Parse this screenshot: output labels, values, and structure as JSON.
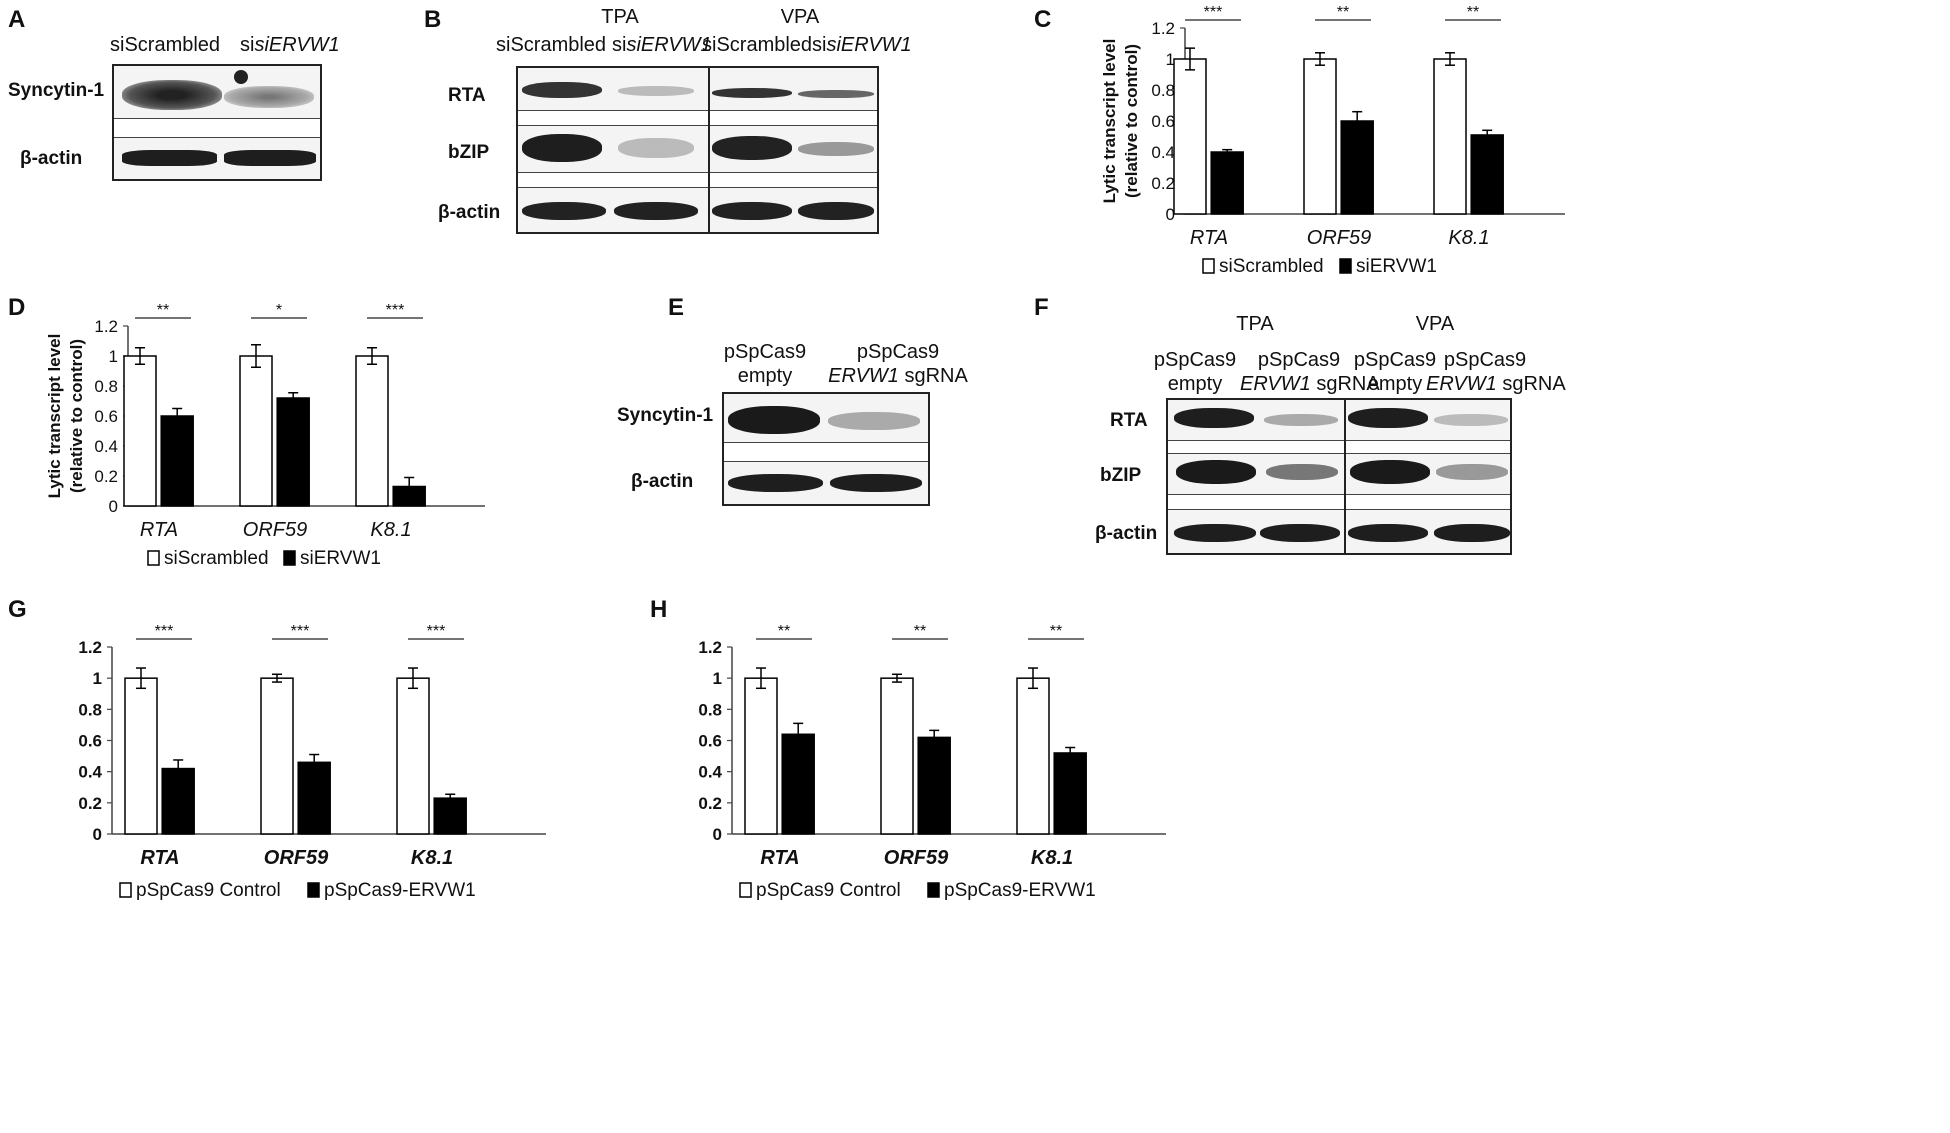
{
  "panels": {
    "A": {
      "letter": "A",
      "lanes": [
        "siScrambled",
        "siERVW1"
      ],
      "rows": [
        "Syncytin-1",
        "β-actin"
      ]
    },
    "B": {
      "letter": "B",
      "groups": [
        "TPA",
        "VPA"
      ],
      "lanes": [
        "siScrambled",
        "siERVW1",
        "siScrambled",
        "siERVW1"
      ],
      "rows": [
        "RTA",
        "bZIP",
        "β-actin"
      ]
    },
    "C": {
      "letter": "C"
    },
    "D": {
      "letter": "D"
    },
    "E": {
      "letter": "E",
      "lanes": [
        {
          "line1": "pSpCas9",
          "line2": "empty"
        },
        {
          "line1": "pSpCas9",
          "line2a": "ERVW1",
          "line2b": " sgRNA"
        }
      ],
      "rows": [
        "Syncytin-1",
        "β-actin"
      ]
    },
    "F": {
      "letter": "F",
      "groups": [
        "TPA",
        "VPA"
      ],
      "lanes": [
        {
          "line1": "pSpCas9",
          "line2": "empty"
        },
        {
          "line1": "pSpCas9",
          "line2a": "ERVW1",
          "line2b": " sgRNA"
        },
        {
          "line1": "pSpCas9",
          "line2": "empty"
        },
        {
          "line1": "pSpCas9",
          "line2a": "ERVW1",
          "line2b": " sgRNA"
        }
      ],
      "rows": [
        "RTA",
        "bZIP",
        "β-actin"
      ]
    },
    "G": {
      "letter": "G"
    },
    "H": {
      "letter": "H"
    }
  },
  "chart_data": [
    {
      "panel": "C",
      "type": "bar",
      "categories": [
        "RTA",
        "ORF59",
        "K8.1"
      ],
      "series": [
        {
          "name": "siScrambled",
          "values": [
            1.0,
            1.0,
            1.0
          ],
          "errors": [
            0.07,
            0.04,
            0.04
          ],
          "color": "#ffffff"
        },
        {
          "name": "siERVW1",
          "values": [
            0.4,
            0.6,
            0.51
          ],
          "errors": [
            0.015,
            0.06,
            0.03
          ],
          "color": "#000000"
        }
      ],
      "significance": [
        "***",
        "**",
        "**"
      ],
      "ylabel": [
        "Lytic transcript level",
        "(relative to control)"
      ],
      "ylim": [
        0,
        1.2
      ],
      "yticks": [
        "0",
        "0.2",
        "0.4",
        "0.6",
        "0.8",
        "1",
        "1.2"
      ],
      "category_style": "italic"
    },
    {
      "panel": "D",
      "type": "bar",
      "categories": [
        "RTA",
        "ORF59",
        "K8.1"
      ],
      "series": [
        {
          "name": "siScrambled",
          "values": [
            1.0,
            1.0,
            1.0
          ],
          "errors": [
            0.055,
            0.075,
            0.055
          ],
          "color": "#ffffff"
        },
        {
          "name": "siERVW1",
          "values": [
            0.6,
            0.72,
            0.13
          ],
          "errors": [
            0.05,
            0.035,
            0.06
          ],
          "color": "#000000"
        }
      ],
      "significance": [
        "**",
        "*",
        "***"
      ],
      "ylabel": [
        "Lytic transcript level",
        "(relative to control)"
      ],
      "ylim": [
        0,
        1.2
      ],
      "yticks": [
        "0",
        "0.2",
        "0.4",
        "0.6",
        "0.8",
        "1",
        "1.2"
      ],
      "category_style": "italic"
    },
    {
      "panel": "G",
      "type": "bar",
      "categories": [
        "RTA",
        "ORF59",
        "K8.1"
      ],
      "series": [
        {
          "name": "pSpCas9 Control",
          "values": [
            1.0,
            1.0,
            1.0
          ],
          "errors": [
            0.065,
            0.025,
            0.065
          ],
          "color": "#ffffff"
        },
        {
          "name": "pSpCas9-ERVW1",
          "values": [
            0.42,
            0.46,
            0.23
          ],
          "errors": [
            0.055,
            0.05,
            0.025
          ],
          "color": "#000000"
        }
      ],
      "significance": [
        "***",
        "***",
        "***"
      ],
      "ylabel": [],
      "ylim": [
        0,
        1.2
      ],
      "yticks": [
        "0",
        "0.2",
        "0.4",
        "0.6",
        "0.8",
        "1",
        "1.2"
      ],
      "category_style": "bold-italic"
    },
    {
      "panel": "H",
      "type": "bar",
      "categories": [
        "RTA",
        "ORF59",
        "K8.1"
      ],
      "series": [
        {
          "name": "pSpCas9 Control",
          "values": [
            1.0,
            1.0,
            1.0
          ],
          "errors": [
            0.065,
            0.025,
            0.065
          ],
          "color": "#ffffff"
        },
        {
          "name": "pSpCas9-ERVW1",
          "values": [
            0.64,
            0.62,
            0.52
          ],
          "errors": [
            0.07,
            0.045,
            0.035
          ],
          "color": "#000000"
        }
      ],
      "significance": [
        "**",
        "**",
        "**"
      ],
      "ylabel": [],
      "ylim": [
        0,
        1.2
      ],
      "yticks": [
        "0",
        "0.2",
        "0.4",
        "0.6",
        "0.8",
        "1",
        "1.2"
      ],
      "category_style": "bold-italic"
    }
  ]
}
